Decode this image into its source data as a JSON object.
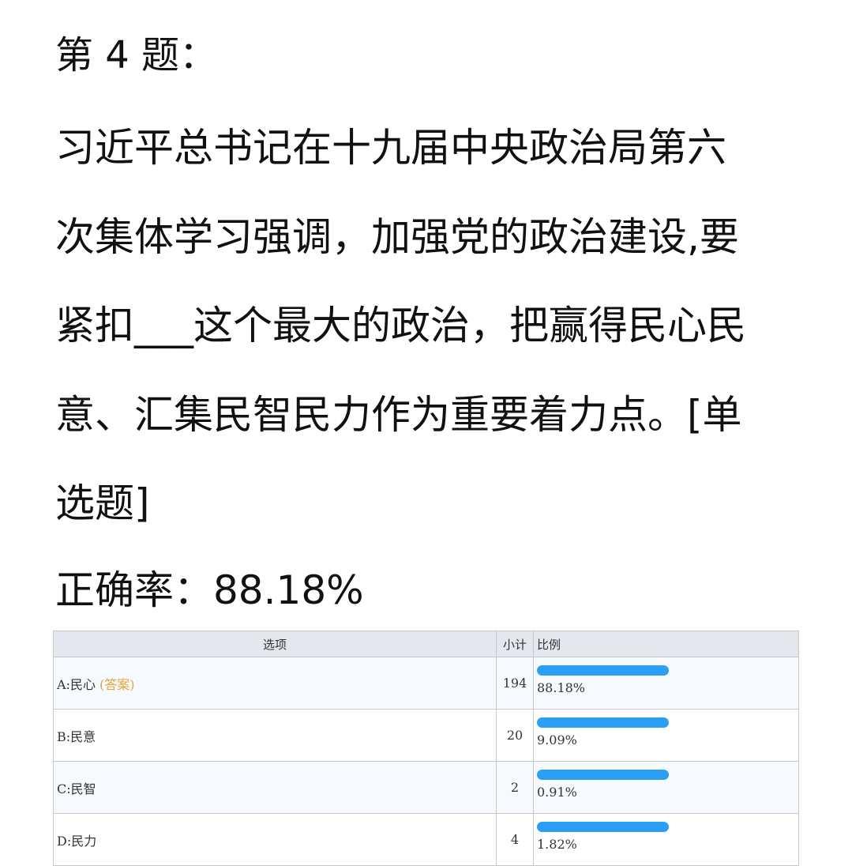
{
  "title": "第 4 题：",
  "question_lines": [
    "习近平总书记在十九届中央政治局第六",
    "次集体学习强调，加强党的政治建设,要",
    "紧扣___这个最大的政治，把赢得民心民",
    "意、汇集民智民力作为重要着力点。[单",
    "选题]"
  ],
  "accuracy": "正确率：88.18%",
  "table": {
    "headers": {
      "option": "选项",
      "count": "小计",
      "ratio": "比例"
    },
    "answer_tag": "(答案)",
    "bar_color": "#2a9ff5",
    "rows": [
      {
        "option": "A:民心",
        "count": "194",
        "ratio": "88.18%",
        "is_answer": true
      },
      {
        "option": "B:民意",
        "count": "20",
        "ratio": "9.09%"
      },
      {
        "option": "C:民智",
        "count": "2",
        "ratio": "0.91%"
      },
      {
        "option": "D:民力",
        "count": "4",
        "ratio": "1.82%"
      }
    ]
  }
}
